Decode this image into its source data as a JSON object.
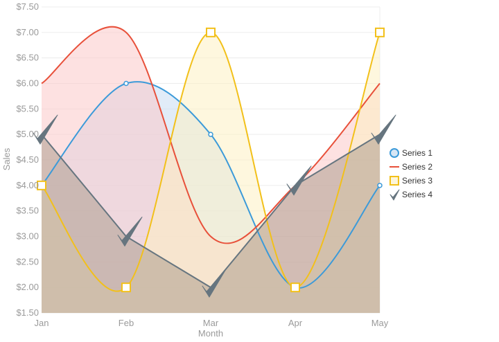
{
  "chart_data": {
    "type": "area",
    "title": "",
    "xlabel": "Month",
    "ylabel": "Sales",
    "categories": [
      "Jan",
      "Feb",
      "Mar",
      "Apr",
      "May"
    ],
    "ylim": [
      1.5,
      7.5
    ],
    "yticks": [
      "$1.50",
      "$2.00",
      "$2.50",
      "$3.00",
      "$3.50",
      "$4.00",
      "$4.50",
      "$5.00",
      "$5.50",
      "$6.00",
      "$6.50",
      "$7.00",
      "$7.50"
    ],
    "grid": true,
    "legend_position": "right",
    "series": [
      {
        "name": "Series 1",
        "values": [
          4.0,
          6.0,
          5.0,
          2.0,
          4.0
        ],
        "color": "#3b9ad9",
        "fill": "#c9dcf3",
        "interpolation": "spline",
        "marker": "circle"
      },
      {
        "name": "Series 2",
        "values": [
          6.0,
          7.0,
          3.0,
          4.0,
          6.0
        ],
        "color": "#e8503a",
        "fill": "#fbc9c9",
        "interpolation": "spline",
        "marker": "none"
      },
      {
        "name": "Series 3",
        "values": [
          4.0,
          2.0,
          7.0,
          2.0,
          7.0
        ],
        "color": "#f2c01a",
        "fill": "#fdf0c2",
        "interpolation": "spline",
        "marker": "square"
      },
      {
        "name": "Series 4",
        "values": [
          5.0,
          3.0,
          2.0,
          4.0,
          5.0
        ],
        "color": "#66757f",
        "fill": "#a89888",
        "interpolation": "linear",
        "marker": "check"
      }
    ]
  }
}
